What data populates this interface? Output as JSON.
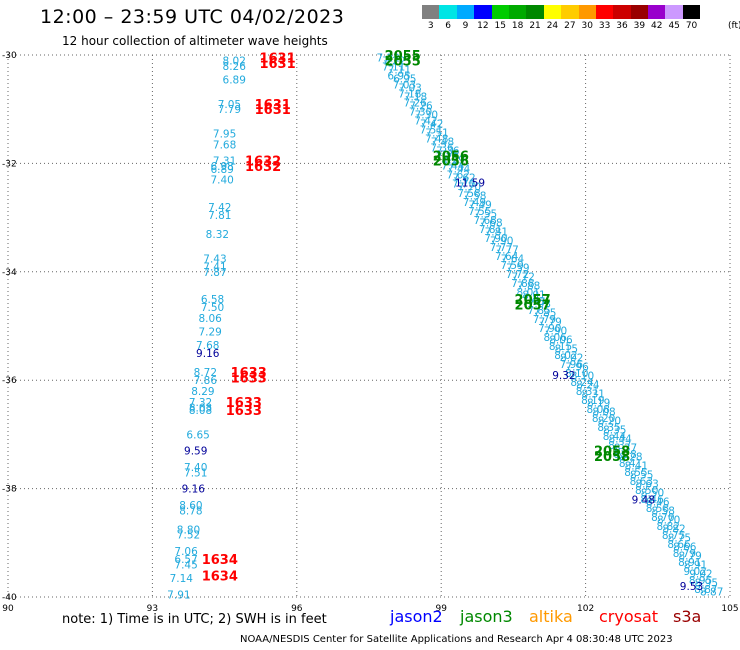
{
  "header": {
    "title": "12:00 – 23:59 UTC 04/02/2023",
    "subtitle": "12 hour collection of altimeter wave heights"
  },
  "colorbar": {
    "labels": [
      "3",
      "6",
      "9",
      "12",
      "15",
      "18",
      "21",
      "24",
      "27",
      "30",
      "33",
      "36",
      "39",
      "42",
      "45",
      "70"
    ],
    "unit": "(ft)",
    "colors": [
      "#808080",
      "#00e5e5",
      "#00aaff",
      "#0000ff",
      "#00cc00",
      "#00aa00",
      "#008800",
      "#ffff00",
      "#ffcc00",
      "#ff9900",
      "#ff0000",
      "#cc0000",
      "#990000",
      "#9900cc",
      "#cc99ff",
      "#000000"
    ]
  },
  "chart_data": {
    "type": "scatter",
    "title": "12:00 – 23:59 UTC 04/02/2023",
    "subtitle": "12 hour collection of altimeter wave heights",
    "xlabel": "",
    "ylabel": "",
    "xlim": [
      90,
      105
    ],
    "ylim": [
      -40,
      -30
    ],
    "x_ticks": [
      90,
      93,
      96,
      99,
      102,
      105
    ],
    "y_ticks": [
      -30,
      -32,
      -34,
      -36,
      -38,
      -40
    ],
    "grid": true,
    "units": "SWH in feet, time in UTC",
    "series": [
      {
        "name": "cryosat",
        "color": "#ff0000",
        "swh_color": "#22aadd",
        "swh": [
          {
            "x": 94.7,
            "y": -30.1,
            "v": "8.02"
          },
          {
            "x": 94.7,
            "y": -30.2,
            "v": "8.26"
          },
          {
            "x": 94.7,
            "y": -30.45,
            "v": "6.89"
          },
          {
            "x": 94.6,
            "y": -30.9,
            "v": "7.05"
          },
          {
            "x": 94.6,
            "y": -31.0,
            "v": "7.79"
          },
          {
            "x": 94.5,
            "y": -31.45,
            "v": "7.95"
          },
          {
            "x": 94.5,
            "y": -31.65,
            "v": "7.68"
          },
          {
            "x": 94.5,
            "y": -31.95,
            "v": "7.31"
          },
          {
            "x": 94.45,
            "y": -32.05,
            "v": "6.98"
          },
          {
            "x": 94.45,
            "y": -32.1,
            "v": "6.89"
          },
          {
            "x": 94.45,
            "y": -32.3,
            "v": "7.40"
          },
          {
            "x": 94.4,
            "y": -32.8,
            "v": "7.42"
          },
          {
            "x": 94.4,
            "y": -32.95,
            "v": "7.81"
          },
          {
            "x": 94.35,
            "y": -33.3,
            "v": "8.32"
          },
          {
            "x": 94.3,
            "y": -33.75,
            "v": "7.43"
          },
          {
            "x": 94.3,
            "y": -33.9,
            "v": "7.41"
          },
          {
            "x": 94.3,
            "y": -34.0,
            "v": "7.87"
          },
          {
            "x": 94.25,
            "y": -34.5,
            "v": "6.58"
          },
          {
            "x": 94.25,
            "y": -34.65,
            "v": "7.50"
          },
          {
            "x": 94.2,
            "y": -34.85,
            "v": "8.06"
          },
          {
            "x": 94.2,
            "y": -35.1,
            "v": "7.29"
          },
          {
            "x": 94.15,
            "y": -35.35,
            "v": "7.68"
          },
          {
            "x": 94.15,
            "y": -35.5,
            "v": "9.16",
            "dark": true
          },
          {
            "x": 94.1,
            "y": -35.85,
            "v": "8.72"
          },
          {
            "x": 94.1,
            "y": -36.0,
            "v": "7.86"
          },
          {
            "x": 94.05,
            "y": -36.2,
            "v": "8.29"
          },
          {
            "x": 94.0,
            "y": -36.4,
            "v": "7.32"
          },
          {
            "x": 94.0,
            "y": -36.5,
            "v": "8.03"
          },
          {
            "x": 94.0,
            "y": -36.55,
            "v": "8.08"
          },
          {
            "x": 93.95,
            "y": -37.0,
            "v": "6.65"
          },
          {
            "x": 93.9,
            "y": -37.3,
            "v": "9.59",
            "dark": true
          },
          {
            "x": 93.9,
            "y": -37.6,
            "v": "7.40"
          },
          {
            "x": 93.9,
            "y": -37.7,
            "v": "7.51"
          },
          {
            "x": 93.85,
            "y": -38.0,
            "v": "9.16",
            "dark": true
          },
          {
            "x": 93.8,
            "y": -38.3,
            "v": "8.60"
          },
          {
            "x": 93.8,
            "y": -38.4,
            "v": "8.78"
          },
          {
            "x": 93.75,
            "y": -38.75,
            "v": "8.80"
          },
          {
            "x": 93.75,
            "y": -38.85,
            "v": "7.52"
          },
          {
            "x": 93.7,
            "y": -39.15,
            "v": "7.06"
          },
          {
            "x": 93.7,
            "y": -39.3,
            "v": "6.57"
          },
          {
            "x": 93.7,
            "y": -39.4,
            "v": "7.45"
          },
          {
            "x": 93.6,
            "y": -39.65,
            "v": "7.14"
          },
          {
            "x": 93.55,
            "y": -39.95,
            "v": "7.91"
          }
        ],
        "times": [
          {
            "x": 95.6,
            "y": -30.05,
            "t": "1631"
          },
          {
            "x": 95.6,
            "y": -30.15,
            "t": "1631"
          },
          {
            "x": 95.5,
            "y": -30.9,
            "t": "1631"
          },
          {
            "x": 95.5,
            "y": -31.0,
            "t": "1631"
          },
          {
            "x": 95.3,
            "y": -31.95,
            "t": "1632"
          },
          {
            "x": 95.3,
            "y": -32.05,
            "t": "1632"
          },
          {
            "x": 95.0,
            "y": -35.85,
            "t": "1633"
          },
          {
            "x": 95.0,
            "y": -35.95,
            "t": "1633"
          },
          {
            "x": 94.9,
            "y": -36.4,
            "t": "1633"
          },
          {
            "x": 94.9,
            "y": -36.55,
            "t": "1633"
          },
          {
            "x": 94.4,
            "y": -39.3,
            "t": "1634"
          },
          {
            "x": 94.4,
            "y": -39.6,
            "t": "1634"
          }
        ]
      },
      {
        "name": "jason3",
        "color": "#008800",
        "swh_color": "#22aadd",
        "track": {
          "x_start": 97.9,
          "y_start": -30.05,
          "x_end": 104.5,
          "y_end": -39.85,
          "count": 60,
          "offset_x": 0.12,
          "offset_y": -0.05
        },
        "swh_values": [
          "7.22",
          "7.11",
          "6.95",
          "7.03",
          "7.18",
          "7.26",
          "7.30",
          "7.42",
          "7.51",
          "7.48",
          "7.36",
          "7.29",
          "7.44",
          "7.62",
          "7.70",
          "7.58",
          "7.49",
          "7.55",
          "7.68",
          "7.81",
          "7.90",
          "7.77",
          "7.64",
          "7.59",
          "7.72",
          "7.88",
          "8.01",
          "7.93",
          "7.85",
          "7.79",
          "7.90",
          "8.06",
          "8.15",
          "8.02",
          "7.96",
          "8.10",
          "8.24",
          "8.31",
          "8.19",
          "8.08",
          "8.20",
          "8.35",
          "8.44",
          "8.37",
          "8.28",
          "8.41",
          "8.55",
          "8.63",
          "8.50",
          "8.46",
          "8.58",
          "8.70",
          "8.82",
          "8.75",
          "8.66",
          "8.79",
          "8.91",
          "9.02",
          "8.95",
          "8.87"
        ],
        "highlights": [
          {
            "x": 99.6,
            "y": -32.35,
            "v": "11.59"
          },
          {
            "x": 101.55,
            "y": -35.9,
            "v": "9.32"
          },
          {
            "x": 103.2,
            "y": -38.2,
            "v": "9.48"
          },
          {
            "x": 104.2,
            "y": -39.8,
            "v": "9.53"
          }
        ],
        "times": [
          {
            "x": 98.2,
            "y": -30.0,
            "t": "2055"
          },
          {
            "x": 98.2,
            "y": -30.1,
            "t": "2055"
          },
          {
            "x": 99.2,
            "y": -31.85,
            "t": "2056"
          },
          {
            "x": 99.2,
            "y": -31.95,
            "t": "2056"
          },
          {
            "x": 100.9,
            "y": -34.5,
            "t": "2057"
          },
          {
            "x": 100.9,
            "y": -34.6,
            "t": "2057"
          },
          {
            "x": 102.55,
            "y": -37.3,
            "t": "2058"
          },
          {
            "x": 102.55,
            "y": -37.4,
            "t": "2058"
          }
        ]
      }
    ]
  },
  "legend": {
    "note": "note: 1) Time is in UTC; 2) SWH is in feet",
    "satellites": [
      {
        "label": "jason2",
        "color": "#0000ff"
      },
      {
        "label": "jason3",
        "color": "#008800"
      },
      {
        "label": "altika",
        "color": "#ff9900"
      },
      {
        "label": "cryosat",
        "color": "#ff0000"
      },
      {
        "label": "s3a",
        "color": "#990000"
      }
    ]
  },
  "footer": {
    "credit": "NOAA/NESDIS Center for Satellite Applications and Research    Apr  4 08:30:48 UTC 2023"
  }
}
